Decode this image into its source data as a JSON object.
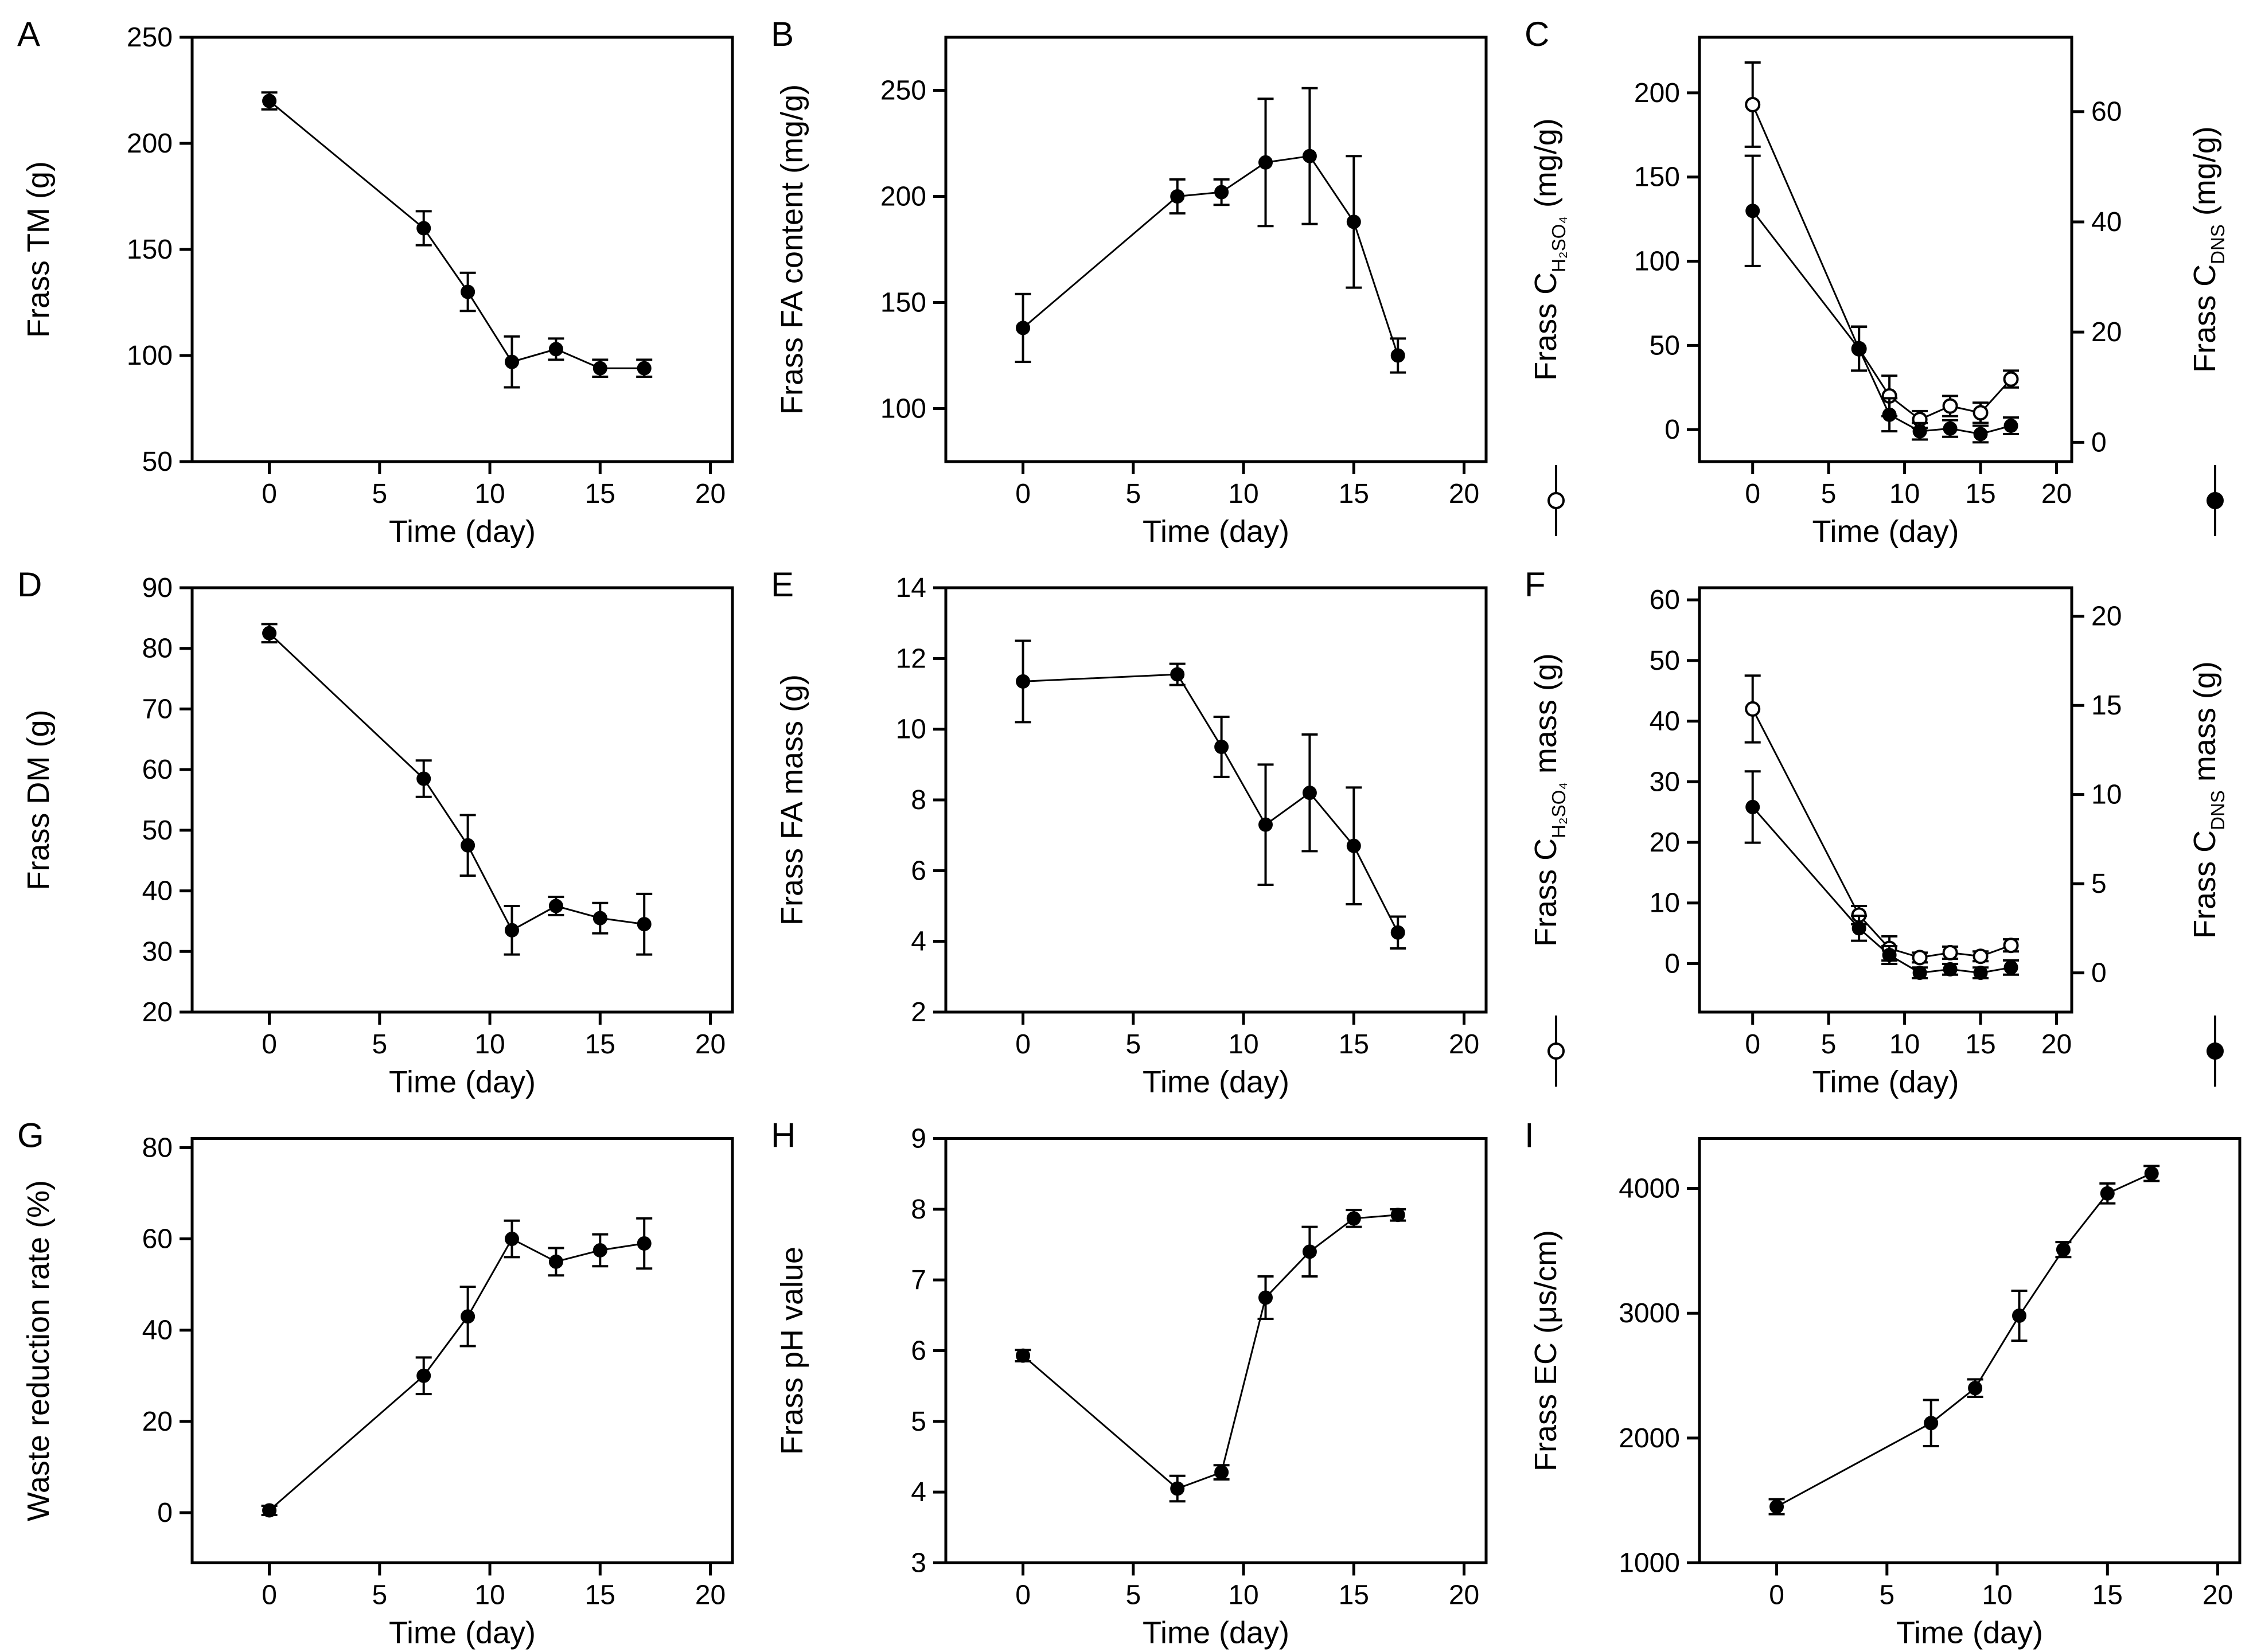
{
  "figure": {
    "background": "#ffffff",
    "ink": "#000000",
    "description": "Nine-panel line/scatter figure (A-I) of frass properties over time with error bars"
  },
  "chart_data": [
    {
      "type": "line",
      "panel": "A",
      "xlabel": "Time (day)",
      "xticks": [
        0,
        5,
        10,
        15,
        20
      ],
      "xlim": [
        -3.5,
        21
      ],
      "x": [
        0,
        7,
        9,
        11,
        13,
        15,
        17
      ],
      "grid": false,
      "legend": "none",
      "axes": [
        {
          "side": "left",
          "label_pre": "Frass TM (g)",
          "label_sub": "",
          "label_post": "",
          "ticks": [
            50,
            100,
            150,
            200,
            250
          ],
          "lim": [
            50,
            250
          ],
          "marker": ""
        }
      ],
      "series": [
        {
          "name": "Frass TM",
          "axis": 0,
          "marker": "filled",
          "y": [
            220,
            160,
            130,
            97,
            103,
            94,
            94
          ],
          "err": [
            4,
            8,
            9,
            12,
            5,
            4,
            4
          ]
        }
      ]
    },
    {
      "type": "line",
      "panel": "B",
      "xlabel": "Time (day)",
      "xticks": [
        0,
        5,
        10,
        15,
        20
      ],
      "xlim": [
        -3.5,
        21
      ],
      "x": [
        0,
        7,
        9,
        11,
        13,
        15,
        17
      ],
      "grid": false,
      "legend": "none",
      "axes": [
        {
          "side": "left",
          "label_pre": "Frass FA content (mg/g)",
          "label_sub": "",
          "label_post": "",
          "ticks": [
            100,
            150,
            200,
            250
          ],
          "lim": [
            75,
            275
          ],
          "marker": ""
        }
      ],
      "series": [
        {
          "name": "Frass FA content",
          "axis": 0,
          "marker": "filled",
          "y": [
            138,
            200,
            202,
            216,
            219,
            188,
            125
          ],
          "err": [
            16,
            8,
            6,
            30,
            32,
            31,
            8
          ]
        }
      ]
    },
    {
      "type": "line",
      "panel": "C",
      "xlabel": "Time (day)",
      "xticks": [
        0,
        5,
        10,
        15,
        20
      ],
      "xlim": [
        -3.5,
        21
      ],
      "x": [
        0,
        7,
        9,
        11,
        13,
        15,
        17
      ],
      "grid": false,
      "legend": "axis-markers",
      "axes": [
        {
          "side": "left",
          "label_pre": "Frass C",
          "label_sub": "H₂SO₄",
          "label_post": " (mg/g)",
          "ticks": [
            0,
            50,
            100,
            150,
            200
          ],
          "lim": [
            -19,
            233
          ],
          "marker": "open"
        },
        {
          "side": "right",
          "label_pre": "Frass C",
          "label_sub": "DNS",
          "label_post": " (mg/g)",
          "ticks": [
            0,
            20,
            40,
            60
          ],
          "lim": [
            -3.5,
            73.5
          ],
          "marker": "filled"
        }
      ],
      "series": [
        {
          "name": "Frass C H2SO4",
          "axis": 0,
          "marker": "open",
          "y": [
            193,
            48,
            20,
            6,
            14,
            10,
            30
          ],
          "err": [
            25,
            13,
            12,
            5,
            6,
            6,
            5
          ]
        },
        {
          "name": "Frass C DNS",
          "axis": 1,
          "marker": "filled",
          "y": [
            42,
            17,
            5,
            2,
            2.5,
            1.5,
            3
          ],
          "err": [
            10,
            4,
            3,
            1.5,
            1.5,
            1.5,
            1.5
          ]
        }
      ]
    },
    {
      "type": "line",
      "panel": "D",
      "xlabel": "Time (day)",
      "xticks": [
        0,
        5,
        10,
        15,
        20
      ],
      "xlim": [
        -3.5,
        21
      ],
      "x": [
        0,
        7,
        9,
        11,
        13,
        15,
        17
      ],
      "grid": false,
      "legend": "none",
      "axes": [
        {
          "side": "left",
          "label_pre": "Frass DM (g)",
          "label_sub": "",
          "label_post": "",
          "ticks": [
            20,
            30,
            40,
            50,
            60,
            70,
            80,
            90
          ],
          "lim": [
            20,
            90
          ],
          "marker": ""
        }
      ],
      "series": [
        {
          "name": "Frass DM",
          "axis": 0,
          "marker": "filled",
          "y": [
            82.5,
            58.5,
            47.5,
            33.5,
            37.5,
            35.5,
            34.5
          ],
          "err": [
            1.5,
            3,
            5,
            4,
            1.5,
            2.5,
            5
          ]
        }
      ]
    },
    {
      "type": "line",
      "panel": "E",
      "xlabel": "Time (day)",
      "xticks": [
        0,
        5,
        10,
        15,
        20
      ],
      "xlim": [
        -3.5,
        21
      ],
      "x": [
        0,
        7,
        9,
        11,
        13,
        15,
        17
      ],
      "grid": false,
      "legend": "none",
      "axes": [
        {
          "side": "left",
          "label_pre": "Frass FA mass (g)",
          "label_sub": "",
          "label_post": "",
          "ticks": [
            2,
            4,
            6,
            8,
            10,
            12,
            14
          ],
          "lim": [
            2,
            14
          ],
          "marker": ""
        }
      ],
      "series": [
        {
          "name": "Frass FA mass",
          "axis": 0,
          "marker": "filled",
          "y": [
            11.35,
            11.55,
            9.5,
            7.3,
            8.2,
            6.7,
            4.25
          ],
          "err": [
            1.15,
            0.3,
            0.85,
            1.7,
            1.65,
            1.65,
            0.45
          ]
        }
      ]
    },
    {
      "type": "line",
      "panel": "F",
      "xlabel": "Time (day)",
      "xticks": [
        0,
        5,
        10,
        15,
        20
      ],
      "xlim": [
        -3.5,
        21
      ],
      "x": [
        0,
        7,
        9,
        11,
        13,
        15,
        17
      ],
      "grid": false,
      "legend": "axis-markers",
      "axes": [
        {
          "side": "left",
          "label_pre": "Frass C",
          "label_sub": "H₂SO₄",
          "label_post": " mass (g)",
          "ticks": [
            0,
            10,
            20,
            30,
            40,
            50,
            60
          ],
          "lim": [
            -8,
            62
          ],
          "marker": "open"
        },
        {
          "side": "right",
          "label_pre": "Frass C",
          "label_sub": "DNS",
          "label_post": " mass (g)",
          "ticks": [
            0,
            5,
            10,
            15,
            20
          ],
          "lim": [
            -2.2,
            21.6
          ],
          "marker": "filled"
        }
      ],
      "series": [
        {
          "name": "Frass C H2SO4 mass",
          "axis": 0,
          "marker": "open",
          "y": [
            42,
            8,
            2.5,
            1,
            1.8,
            1.2,
            3
          ],
          "err": [
            5.5,
            1.5,
            2,
            0.8,
            1,
            0.8,
            1
          ]
        },
        {
          "name": "Frass C DNS mass",
          "axis": 1,
          "marker": "filled",
          "y": [
            9.3,
            2.5,
            1,
            0,
            0.2,
            0,
            0.3
          ],
          "err": [
            2,
            0.7,
            0.5,
            0.3,
            0.3,
            0.3,
            0.4
          ]
        }
      ]
    },
    {
      "type": "line",
      "panel": "G",
      "xlabel": "Time (day)",
      "xticks": [
        0,
        5,
        10,
        15,
        20
      ],
      "xlim": [
        -3.5,
        21
      ],
      "x": [
        0,
        7,
        9,
        11,
        13,
        15,
        17
      ],
      "grid": false,
      "legend": "none",
      "axes": [
        {
          "side": "left",
          "label_pre": "Waste reduction rate (%)",
          "label_sub": "",
          "label_post": "",
          "ticks": [
            0,
            20,
            40,
            60,
            80
          ],
          "lim": [
            -11,
            82
          ],
          "marker": ""
        }
      ],
      "series": [
        {
          "name": "Waste reduction rate",
          "axis": 0,
          "marker": "filled",
          "y": [
            0.5,
            30,
            43,
            60,
            55,
            57.5,
            59
          ],
          "err": [
            1,
            4,
            6.5,
            4,
            3,
            3.5,
            5.5
          ]
        }
      ]
    },
    {
      "type": "line",
      "panel": "H",
      "xlabel": "Time (day)",
      "xticks": [
        0,
        5,
        10,
        15,
        20
      ],
      "xlim": [
        -3.5,
        21
      ],
      "x": [
        0,
        7,
        9,
        11,
        13,
        15,
        17
      ],
      "grid": false,
      "legend": "none",
      "axes": [
        {
          "side": "left",
          "label_pre": "Frass pH value",
          "label_sub": "",
          "label_post": "",
          "ticks": [
            3,
            4,
            5,
            6,
            7,
            8,
            9
          ],
          "lim": [
            3,
            9
          ],
          "marker": ""
        }
      ],
      "series": [
        {
          "name": "Frass pH",
          "axis": 0,
          "marker": "filled",
          "y": [
            5.93,
            4.05,
            4.28,
            6.75,
            7.4,
            7.87,
            7.92
          ],
          "err": [
            0.08,
            0.18,
            0.1,
            0.3,
            0.35,
            0.12,
            0.08
          ]
        }
      ]
    },
    {
      "type": "line",
      "panel": "I",
      "xlabel": "Time (day)",
      "xticks": [
        0,
        5,
        10,
        15,
        20
      ],
      "xlim": [
        -3.5,
        21
      ],
      "x": [
        0,
        7,
        9,
        11,
        13,
        15,
        17
      ],
      "grid": false,
      "legend": "none",
      "axes": [
        {
          "side": "left",
          "label_pre": "Frass EC (μs/cm)",
          "label_sub": "",
          "label_post": "",
          "ticks": [
            1000,
            2000,
            3000,
            4000
          ],
          "lim": [
            1000,
            4400
          ],
          "marker": ""
        }
      ],
      "series": [
        {
          "name": "Frass EC",
          "axis": 0,
          "marker": "filled",
          "y": [
            1450,
            2120,
            2400,
            2980,
            3510,
            3960,
            4120
          ],
          "err": [
            60,
            185,
            70,
            200,
            60,
            80,
            60
          ]
        }
      ]
    }
  ]
}
